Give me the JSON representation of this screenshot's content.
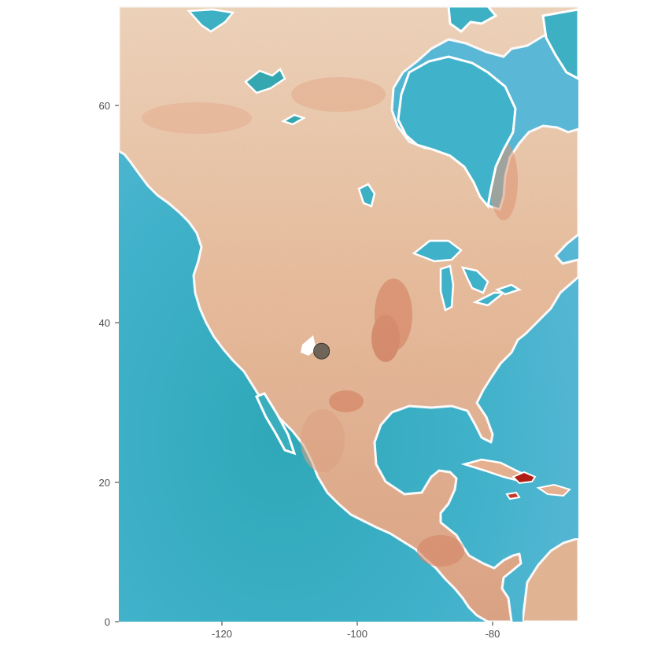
{
  "chart_data": {
    "type": "scatter",
    "basemap": "watercolor",
    "title": "",
    "xlabel": "",
    "ylabel": "",
    "xlim": [
      -135,
      -67
    ],
    "ylim": [
      0,
      70
    ],
    "y_axis_scale": "mercator",
    "x_ticks": [
      -120,
      -100,
      -80
    ],
    "x_tick_labels": [
      "-120",
      "-100",
      "-80"
    ],
    "y_ticks": [
      0,
      20,
      40,
      60
    ],
    "y_tick_labels": [
      "0",
      "20",
      "40",
      "60"
    ],
    "grid": false,
    "points": [
      {
        "lon": -105,
        "lat": 40
      }
    ],
    "colors": {
      "ocean": "#3fb1c9",
      "land": "#e9bc9b",
      "coast": "#ffffff",
      "point": "#5b564c"
    }
  }
}
